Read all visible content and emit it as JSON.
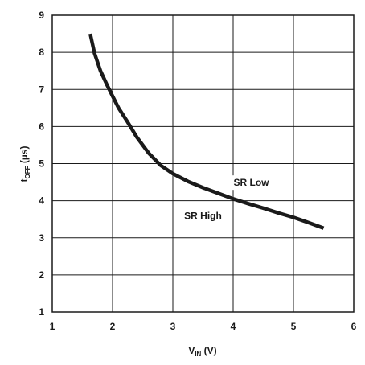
{
  "chart_data": {
    "type": "line",
    "title": "",
    "xlabel": {
      "main": "V",
      "sub": "IN",
      "unit": " (V)"
    },
    "ylabel": {
      "main": "t",
      "sub": "OFF",
      "unit": " (µs)"
    },
    "xlim": [
      1,
      6
    ],
    "ylim": [
      1,
      9
    ],
    "x_ticks": [
      "1",
      "2",
      "3",
      "4",
      "5",
      "6"
    ],
    "y_ticks": [
      "1",
      "2",
      "3",
      "4",
      "5",
      "6",
      "7",
      "8",
      "9"
    ],
    "grid": true,
    "legend": "none",
    "series": [
      {
        "color": "#1a1a1a",
        "x": [
          1.63,
          1.7,
          1.8,
          1.9,
          2.0,
          2.1,
          2.25,
          2.4,
          2.6,
          2.8,
          3.0,
          3.25,
          3.5,
          3.75,
          4.0,
          4.25,
          4.5,
          4.75,
          5.0,
          5.25,
          5.5
        ],
        "y": [
          8.5,
          7.98,
          7.5,
          7.15,
          6.82,
          6.5,
          6.12,
          5.72,
          5.28,
          4.95,
          4.73,
          4.52,
          4.35,
          4.2,
          4.05,
          3.92,
          3.8,
          3.67,
          3.55,
          3.41,
          3.26
        ]
      }
    ],
    "annotations": [
      {
        "text": "SR Low",
        "x": 4.3,
        "y": 4.4
      },
      {
        "text": "SR High",
        "x": 3.5,
        "y": 3.5
      }
    ]
  }
}
